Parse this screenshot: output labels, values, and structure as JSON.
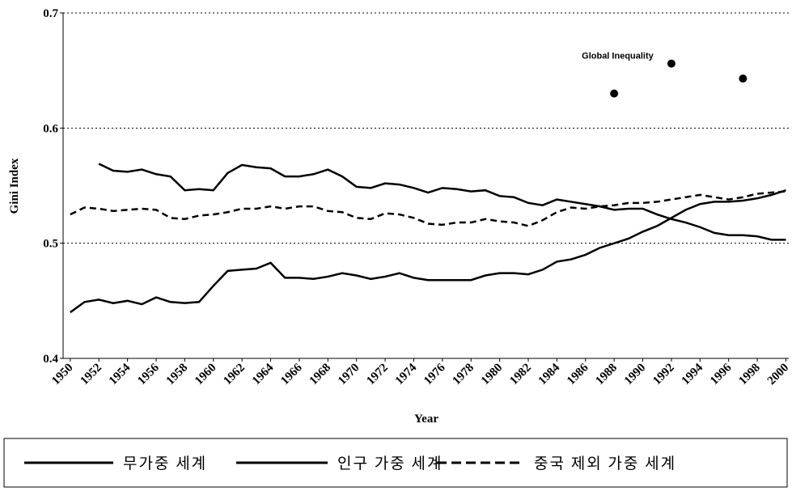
{
  "chart_data": {
    "type": "line",
    "y_label": "Gini Index",
    "x_label": "Year",
    "x": [
      1950,
      1951,
      1952,
      1953,
      1954,
      1955,
      1956,
      1957,
      1958,
      1959,
      1960,
      1961,
      1962,
      1963,
      1964,
      1965,
      1966,
      1967,
      1968,
      1969,
      1970,
      1971,
      1972,
      1973,
      1974,
      1975,
      1976,
      1977,
      1978,
      1979,
      1980,
      1981,
      1982,
      1983,
      1984,
      1985,
      1986,
      1987,
      1988,
      1989,
      1990,
      1991,
      1992,
      1993,
      1994,
      1995,
      1996,
      1997,
      1998,
      1999,
      2000
    ],
    "series": [
      {
        "name": "무가중 세계",
        "color": "#000000",
        "dash": "solid",
        "values": [
          0.44,
          0.449,
          0.451,
          0.448,
          0.45,
          0.447,
          0.453,
          0.449,
          0.448,
          0.449,
          0.463,
          0.476,
          0.477,
          0.478,
          0.483,
          0.47,
          0.47,
          0.469,
          0.471,
          0.474,
          0.472,
          0.469,
          0.471,
          0.474,
          0.47,
          0.468,
          0.468,
          0.468,
          0.468,
          0.472,
          0.474,
          0.474,
          0.473,
          0.477,
          0.484,
          0.486,
          0.49,
          0.496,
          0.5,
          0.504,
          0.51,
          0.515,
          0.522,
          0.529,
          0.534,
          0.536,
          0.536,
          0.537,
          0.539,
          0.542,
          0.546
        ]
      },
      {
        "name": "인구 가중 세계",
        "color": "#000000",
        "dash": "solid",
        "values": [
          null,
          null,
          0.569,
          0.563,
          0.562,
          0.564,
          0.56,
          0.558,
          0.546,
          0.547,
          0.546,
          0.561,
          0.568,
          0.566,
          0.565,
          0.558,
          0.558,
          0.56,
          0.564,
          0.558,
          0.549,
          0.548,
          0.552,
          0.551,
          0.548,
          0.544,
          0.548,
          0.547,
          0.545,
          0.546,
          0.541,
          0.54,
          0.535,
          0.533,
          0.538,
          0.536,
          0.534,
          0.532,
          0.529,
          0.53,
          0.53,
          0.525,
          0.521,
          0.518,
          0.514,
          0.509,
          0.507,
          0.507,
          0.506,
          0.503,
          0.503
        ]
      },
      {
        "name": "중국 제외 가중 세계",
        "color": "#000000",
        "dash": "dashed",
        "values": [
          0.525,
          0.531,
          0.53,
          0.528,
          0.529,
          0.53,
          0.529,
          0.522,
          0.521,
          0.524,
          0.525,
          0.527,
          0.53,
          0.53,
          0.532,
          0.53,
          0.532,
          0.532,
          0.528,
          0.527,
          0.522,
          0.521,
          0.526,
          0.525,
          0.522,
          0.517,
          0.516,
          0.518,
          0.518,
          0.521,
          0.519,
          0.518,
          0.515,
          0.52,
          0.527,
          0.531,
          0.53,
          0.532,
          0.533,
          0.535,
          0.535,
          0.536,
          0.538,
          0.54,
          0.542,
          0.54,
          0.538,
          0.54,
          0.543,
          0.544,
          0.545
        ]
      }
    ],
    "points": {
      "label": "Global Inequality",
      "color": "#000000",
      "x": [
        1988,
        1992,
        1997
      ],
      "values": [
        0.63,
        0.656,
        0.643
      ]
    },
    "xlim": [
      1949.5,
      2000.2
    ],
    "xticks": [
      1950,
      1952,
      1954,
      1956,
      1958,
      1960,
      1962,
      1964,
      1966,
      1968,
      1970,
      1972,
      1974,
      1976,
      1978,
      1980,
      1982,
      1984,
      1986,
      1988,
      1990,
      1992,
      1994,
      1996,
      1998,
      2000
    ],
    "ylim": [
      0.4,
      0.7
    ],
    "yticks": [
      0.4,
      0.5,
      0.6,
      0.7
    ],
    "grid": true,
    "legend": "bottom"
  }
}
